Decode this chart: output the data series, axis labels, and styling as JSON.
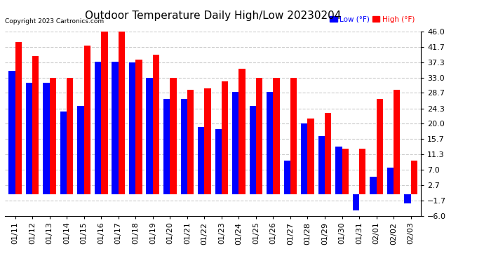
{
  "title": "Outdoor Temperature Daily High/Low 20230204",
  "copyright": "Copyright 2023 Cartronics.com",
  "legend_low": "Low",
  "legend_high": "High",
  "legend_unit": "(°F)",
  "background_color": "#ffffff",
  "plot_bg_color": "#ffffff",
  "grid_color": "#cccccc",
  "low_color": "#0000ff",
  "high_color": "#ff0000",
  "dates": [
    "01/11",
    "01/12",
    "01/13",
    "01/14",
    "01/15",
    "01/16",
    "01/17",
    "01/18",
    "01/19",
    "01/20",
    "01/21",
    "01/22",
    "01/23",
    "01/24",
    "01/25",
    "01/26",
    "01/27",
    "01/28",
    "01/29",
    "01/30",
    "01/31",
    "02/01",
    "02/02",
    "02/03"
  ],
  "high_values": [
    43.0,
    39.0,
    33.0,
    33.0,
    42.0,
    46.0,
    46.0,
    38.0,
    39.5,
    33.0,
    29.5,
    30.0,
    32.0,
    35.5,
    33.0,
    33.0,
    33.0,
    21.5,
    23.0,
    13.0,
    13.0,
    27.0,
    29.5,
    9.5
  ],
  "low_values": [
    35.0,
    31.5,
    31.5,
    23.5,
    25.0,
    37.5,
    37.5,
    37.3,
    33.0,
    27.0,
    27.0,
    19.0,
    18.5,
    29.0,
    25.0,
    29.0,
    9.5,
    20.0,
    16.5,
    13.5,
    -4.5,
    5.0,
    7.5,
    -2.5
  ],
  "ylim": [
    -6.0,
    46.0
  ],
  "yticks": [
    -6.0,
    -1.7,
    2.7,
    7.0,
    11.3,
    15.7,
    20.0,
    24.3,
    28.7,
    33.0,
    37.3,
    41.7,
    46.0
  ],
  "title_fontsize": 11,
  "tick_fontsize": 8,
  "bar_width": 0.38,
  "figwidth": 6.9,
  "figheight": 3.75,
  "dpi": 100
}
